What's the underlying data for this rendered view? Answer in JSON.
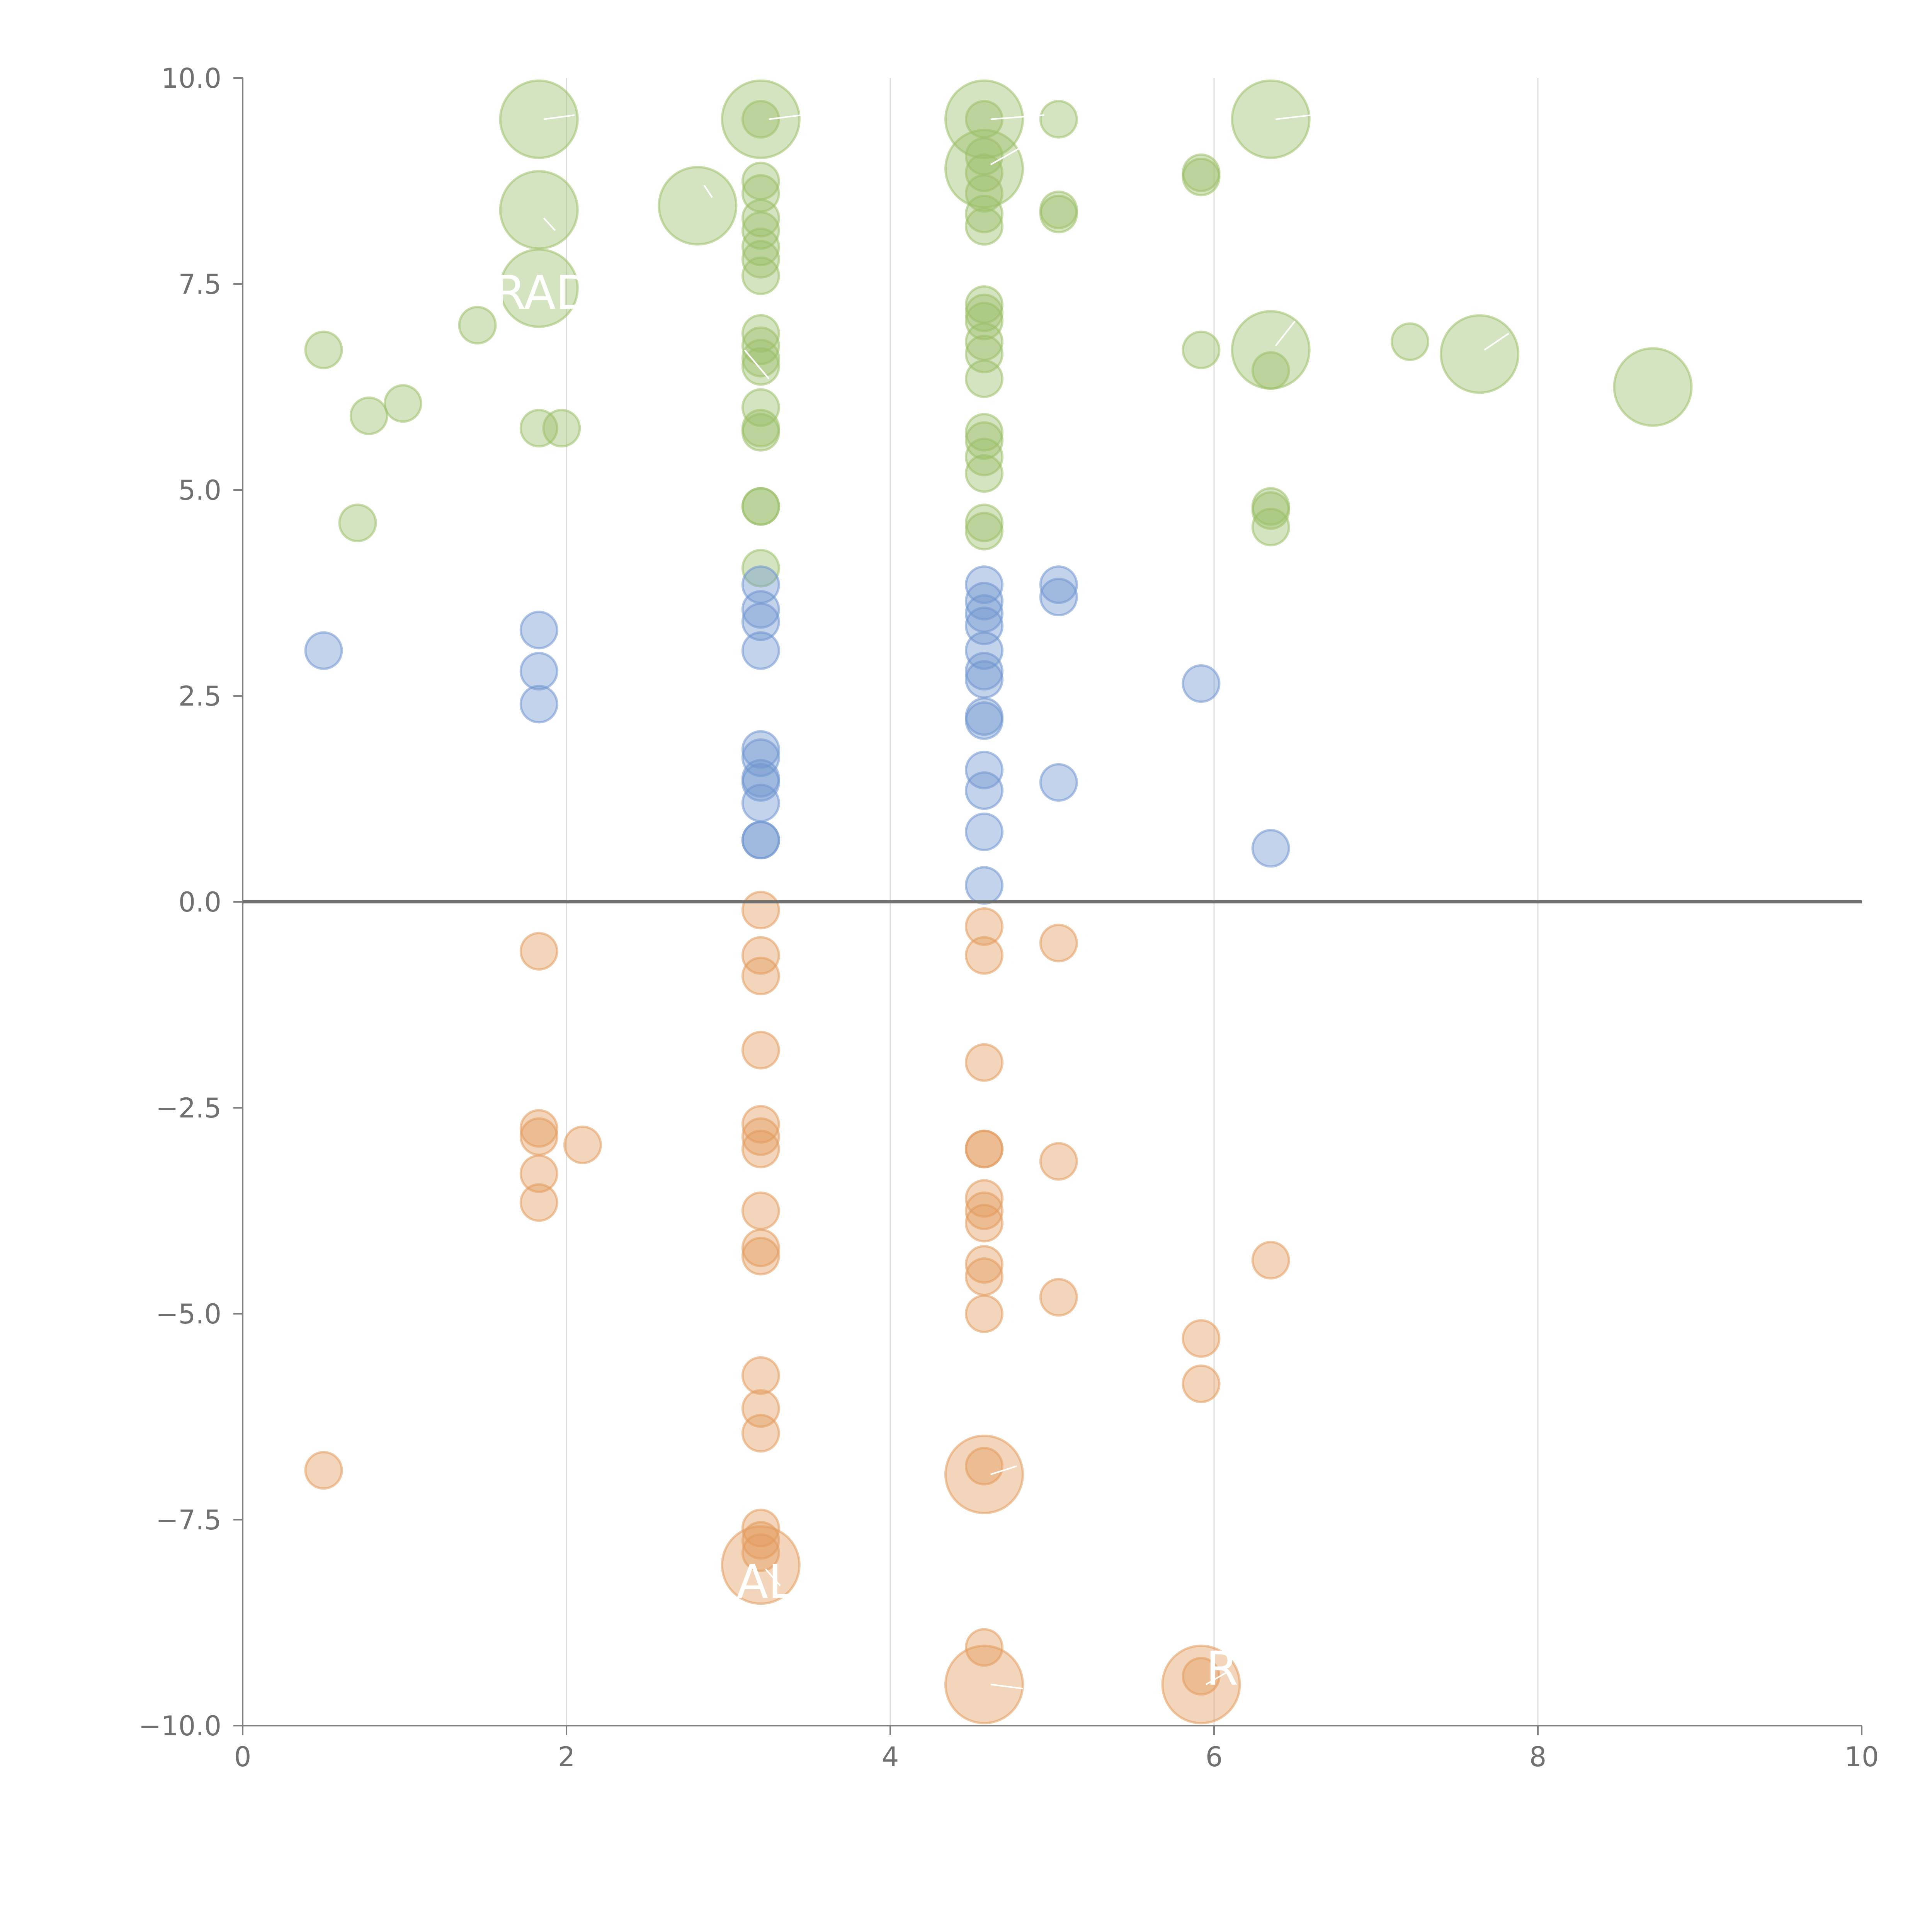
{
  "chart_data": {
    "type": "scatter",
    "title": "",
    "xlabel": "",
    "ylabel": "",
    "xlim": [
      0,
      10
    ],
    "ylim": [
      -10,
      10
    ],
    "x_ticks": [
      0,
      2,
      4,
      6,
      8,
      10
    ],
    "y_ticks": [
      -10,
      -7.5,
      -5,
      -2.5,
      0,
      2.5,
      5,
      7.5,
      10
    ],
    "x_tick_labels": [
      "0",
      "2",
      "4",
      "6",
      "8",
      "10"
    ],
    "y_tick_labels": [
      "−10.0",
      "−7.5",
      "−5.0",
      "−2.5",
      "0.0",
      "2.5",
      "5.0",
      "7.5",
      "10.0"
    ],
    "vertical_gridlines_at": [
      2,
      4,
      6,
      8
    ],
    "zero_line": true,
    "legend": "none",
    "colors": {
      "green": "#9bbf68",
      "blue": "#6f95cf",
      "orange": "#e29a5c"
    },
    "series": [
      {
        "name": "green",
        "points": [
          {
            "x": 1.83,
            "y": 9.5,
            "r": 3
          },
          {
            "x": 1.83,
            "y": 8.4,
            "r": 3
          },
          {
            "x": 1.83,
            "y": 7.45,
            "r": 3
          },
          {
            "x": 2.81,
            "y": 8.45,
            "r": 3
          },
          {
            "x": 3.2,
            "y": 9.5,
            "r": 3
          },
          {
            "x": 3.2,
            "y": 9.5,
            "r": 1
          },
          {
            "x": 3.2,
            "y": 8.75,
            "r": 1
          },
          {
            "x": 3.2,
            "y": 8.6,
            "r": 1
          },
          {
            "x": 3.2,
            "y": 8.3,
            "r": 1
          },
          {
            "x": 3.2,
            "y": 8.15,
            "r": 1
          },
          {
            "x": 3.2,
            "y": 7.95,
            "r": 1
          },
          {
            "x": 3.2,
            "y": 7.8,
            "r": 1
          },
          {
            "x": 3.2,
            "y": 7.6,
            "r": 1
          },
          {
            "x": 3.2,
            "y": 6.9,
            "r": 1
          },
          {
            "x": 3.2,
            "y": 6.75,
            "r": 1
          },
          {
            "x": 3.2,
            "y": 6.6,
            "r": 1
          },
          {
            "x": 3.2,
            "y": 6.5,
            "r": 1
          },
          {
            "x": 3.2,
            "y": 6.0,
            "r": 1
          },
          {
            "x": 3.2,
            "y": 5.75,
            "r": 1
          },
          {
            "x": 3.2,
            "y": 5.7,
            "r": 1
          },
          {
            "x": 3.2,
            "y": 4.8,
            "r": 1
          },
          {
            "x": 3.2,
            "y": 4.8,
            "r": 1
          },
          {
            "x": 3.2,
            "y": 4.05,
            "r": 1
          },
          {
            "x": 4.58,
            "y": 9.5,
            "r": 3
          },
          {
            "x": 4.58,
            "y": 8.9,
            "r": 3
          },
          {
            "x": 4.58,
            "y": 9.5,
            "r": 1
          },
          {
            "x": 4.58,
            "y": 9.05,
            "r": 1
          },
          {
            "x": 4.58,
            "y": 8.85,
            "r": 1
          },
          {
            "x": 4.58,
            "y": 8.6,
            "r": 1
          },
          {
            "x": 4.58,
            "y": 8.35,
            "r": 1
          },
          {
            "x": 4.58,
            "y": 8.2,
            "r": 1
          },
          {
            "x": 4.58,
            "y": 7.25,
            "r": 1
          },
          {
            "x": 4.58,
            "y": 7.15,
            "r": 1
          },
          {
            "x": 4.58,
            "y": 7.05,
            "r": 1
          },
          {
            "x": 4.58,
            "y": 6.8,
            "r": 1
          },
          {
            "x": 4.58,
            "y": 6.65,
            "r": 1
          },
          {
            "x": 4.58,
            "y": 6.35,
            "r": 1
          },
          {
            "x": 4.58,
            "y": 5.7,
            "r": 1
          },
          {
            "x": 4.58,
            "y": 5.6,
            "r": 1
          },
          {
            "x": 4.58,
            "y": 5.4,
            "r": 1
          },
          {
            "x": 4.58,
            "y": 5.2,
            "r": 1
          },
          {
            "x": 4.58,
            "y": 4.6,
            "r": 1
          },
          {
            "x": 4.58,
            "y": 4.5,
            "r": 1
          },
          {
            "x": 5.04,
            "y": 9.5,
            "r": 1
          },
          {
            "x": 5.04,
            "y": 8.4,
            "r": 1
          },
          {
            "x": 5.04,
            "y": 8.35,
            "r": 1
          },
          {
            "x": 5.92,
            "y": 8.85,
            "r": 1
          },
          {
            "x": 5.92,
            "y": 8.8,
            "r": 1
          },
          {
            "x": 5.92,
            "y": 6.7,
            "r": 1
          },
          {
            "x": 6.35,
            "y": 9.5,
            "r": 3
          },
          {
            "x": 6.35,
            "y": 6.7,
            "r": 3
          },
          {
            "x": 6.35,
            "y": 6.45,
            "r": 1
          },
          {
            "x": 6.35,
            "y": 4.8,
            "r": 1
          },
          {
            "x": 6.35,
            "y": 4.75,
            "r": 1
          },
          {
            "x": 6.35,
            "y": 4.55,
            "r": 1
          },
          {
            "x": 7.21,
            "y": 6.8,
            "r": 1
          },
          {
            "x": 7.64,
            "y": 6.65,
            "r": 3
          },
          {
            "x": 8.71,
            "y": 6.25,
            "r": 3
          },
          {
            "x": 0.5,
            "y": 6.7,
            "r": 1
          },
          {
            "x": 0.78,
            "y": 5.9,
            "r": 1
          },
          {
            "x": 0.99,
            "y": 6.05,
            "r": 1
          },
          {
            "x": 1.45,
            "y": 7.0,
            "r": 1
          },
          {
            "x": 1.83,
            "y": 5.75,
            "r": 1
          },
          {
            "x": 1.97,
            "y": 5.75,
            "r": 1
          },
          {
            "x": 0.71,
            "y": 4.6,
            "r": 1
          }
        ]
      },
      {
        "name": "blue",
        "points": [
          {
            "x": 0.5,
            "y": 3.05,
            "r": 1
          },
          {
            "x": 1.83,
            "y": 3.3,
            "r": 1
          },
          {
            "x": 1.83,
            "y": 2.8,
            "r": 1
          },
          {
            "x": 1.83,
            "y": 2.4,
            "r": 1
          },
          {
            "x": 3.2,
            "y": 3.85,
            "r": 1
          },
          {
            "x": 3.2,
            "y": 3.55,
            "r": 1
          },
          {
            "x": 3.2,
            "y": 3.4,
            "r": 1
          },
          {
            "x": 3.2,
            "y": 3.05,
            "r": 1
          },
          {
            "x": 3.2,
            "y": 1.85,
            "r": 1
          },
          {
            "x": 3.2,
            "y": 1.75,
            "r": 1
          },
          {
            "x": 3.2,
            "y": 1.5,
            "r": 1
          },
          {
            "x": 3.2,
            "y": 1.45,
            "r": 1
          },
          {
            "x": 3.2,
            "y": 1.2,
            "r": 1
          },
          {
            "x": 3.2,
            "y": 0.75,
            "r": 1
          },
          {
            "x": 3.2,
            "y": 0.75,
            "r": 1
          },
          {
            "x": 4.58,
            "y": 3.85,
            "r": 1
          },
          {
            "x": 4.58,
            "y": 3.65,
            "r": 1
          },
          {
            "x": 4.58,
            "y": 3.5,
            "r": 1
          },
          {
            "x": 4.58,
            "y": 3.35,
            "r": 1
          },
          {
            "x": 4.58,
            "y": 3.05,
            "r": 1
          },
          {
            "x": 4.58,
            "y": 2.8,
            "r": 1
          },
          {
            "x": 4.58,
            "y": 2.7,
            "r": 1
          },
          {
            "x": 4.58,
            "y": 2.25,
            "r": 1
          },
          {
            "x": 4.58,
            "y": 2.2,
            "r": 1
          },
          {
            "x": 4.58,
            "y": 1.6,
            "r": 1
          },
          {
            "x": 4.58,
            "y": 1.35,
            "r": 1
          },
          {
            "x": 4.58,
            "y": 0.85,
            "r": 1
          },
          {
            "x": 4.58,
            "y": 0.2,
            "r": 1
          },
          {
            "x": 5.04,
            "y": 3.85,
            "r": 1
          },
          {
            "x": 5.04,
            "y": 3.7,
            "r": 1
          },
          {
            "x": 5.04,
            "y": 1.45,
            "r": 1
          },
          {
            "x": 5.92,
            "y": 2.65,
            "r": 1
          },
          {
            "x": 6.35,
            "y": 0.65,
            "r": 1
          }
        ]
      },
      {
        "name": "orange",
        "points": [
          {
            "x": 1.83,
            "y": -0.6,
            "r": 1
          },
          {
            "x": 1.83,
            "y": -2.75,
            "r": 1
          },
          {
            "x": 1.83,
            "y": -2.85,
            "r": 1
          },
          {
            "x": 1.83,
            "y": -3.3,
            "r": 1
          },
          {
            "x": 1.83,
            "y": -3.65,
            "r": 1
          },
          {
            "x": 2.1,
            "y": -2.95,
            "r": 1
          },
          {
            "x": 0.5,
            "y": -6.9,
            "r": 1
          },
          {
            "x": 3.2,
            "y": -0.1,
            "r": 1
          },
          {
            "x": 3.2,
            "y": -0.65,
            "r": 1
          },
          {
            "x": 3.2,
            "y": -0.9,
            "r": 1
          },
          {
            "x": 3.2,
            "y": -1.8,
            "r": 1
          },
          {
            "x": 3.2,
            "y": -2.7,
            "r": 1
          },
          {
            "x": 3.2,
            "y": -2.85,
            "r": 1
          },
          {
            "x": 3.2,
            "y": -3.0,
            "r": 1
          },
          {
            "x": 3.2,
            "y": -3.75,
            "r": 1
          },
          {
            "x": 3.2,
            "y": -4.2,
            "r": 1
          },
          {
            "x": 3.2,
            "y": -4.3,
            "r": 1
          },
          {
            "x": 3.2,
            "y": -5.75,
            "r": 1
          },
          {
            "x": 3.2,
            "y": -6.15,
            "r": 1
          },
          {
            "x": 3.2,
            "y": -6.45,
            "r": 1
          },
          {
            "x": 3.2,
            "y": -7.6,
            "r": 1
          },
          {
            "x": 3.2,
            "y": -7.75,
            "r": 1
          },
          {
            "x": 3.2,
            "y": -7.9,
            "r": 1
          },
          {
            "x": 3.2,
            "y": -8.05,
            "r": 3
          },
          {
            "x": 4.58,
            "y": -0.3,
            "r": 1
          },
          {
            "x": 4.58,
            "y": -0.65,
            "r": 1
          },
          {
            "x": 4.58,
            "y": -1.95,
            "r": 1
          },
          {
            "x": 4.58,
            "y": -3.0,
            "r": 1
          },
          {
            "x": 4.58,
            "y": -3.0,
            "r": 1
          },
          {
            "x": 4.58,
            "y": -3.6,
            "r": 1
          },
          {
            "x": 4.58,
            "y": -3.75,
            "r": 1
          },
          {
            "x": 4.58,
            "y": -3.9,
            "r": 1
          },
          {
            "x": 4.58,
            "y": -4.4,
            "r": 1
          },
          {
            "x": 4.58,
            "y": -4.55,
            "r": 1
          },
          {
            "x": 4.58,
            "y": -5.0,
            "r": 1
          },
          {
            "x": 4.58,
            "y": -6.85,
            "r": 1
          },
          {
            "x": 4.58,
            "y": -6.95,
            "r": 3
          },
          {
            "x": 4.58,
            "y": -9.05,
            "r": 1
          },
          {
            "x": 4.58,
            "y": -9.5,
            "r": 3
          },
          {
            "x": 5.04,
            "y": -0.5,
            "r": 1
          },
          {
            "x": 5.04,
            "y": -3.15,
            "r": 1
          },
          {
            "x": 5.04,
            "y": -4.8,
            "r": 1
          },
          {
            "x": 5.92,
            "y": -5.3,
            "r": 1
          },
          {
            "x": 5.92,
            "y": -5.85,
            "r": 1
          },
          {
            "x": 5.92,
            "y": -9.4,
            "r": 1
          },
          {
            "x": 5.92,
            "y": -9.5,
            "r": 3
          },
          {
            "x": 6.35,
            "y": -4.35,
            "r": 1
          }
        ]
      }
    ],
    "callouts": [
      {
        "x1": 1.86,
        "y1": 9.5,
        "x2": 2.05,
        "y2": 9.55
      },
      {
        "x1": 1.86,
        "y1": 8.3,
        "x2": 1.93,
        "y2": 8.15
      },
      {
        "x1": 2.85,
        "y1": 8.7,
        "x2": 2.9,
        "y2": 8.55
      },
      {
        "x1": 3.25,
        "y1": 9.5,
        "x2": 3.45,
        "y2": 9.55
      },
      {
        "x1": 4.62,
        "y1": 9.5,
        "x2": 4.95,
        "y2": 9.55
      },
      {
        "x1": 4.62,
        "y1": 8.95,
        "x2": 4.8,
        "y2": 9.15
      },
      {
        "x1": 6.38,
        "y1": 9.5,
        "x2": 6.6,
        "y2": 9.55
      },
      {
        "x1": 6.38,
        "y1": 6.75,
        "x2": 6.5,
        "y2": 7.05
      },
      {
        "x1": 7.67,
        "y1": 6.7,
        "x2": 7.82,
        "y2": 6.9
      },
      {
        "x1": 3.25,
        "y1": 6.35,
        "x2": 3.1,
        "y2": 6.7
      },
      {
        "x1": 4.62,
        "y1": -6.95,
        "x2": 4.78,
        "y2": -6.85
      },
      {
        "x1": 3.23,
        "y1": -8.1,
        "x2": 3.32,
        "y2": -8.3
      },
      {
        "x1": 4.62,
        "y1": -9.5,
        "x2": 4.82,
        "y2": -9.55
      },
      {
        "x1": 5.95,
        "y1": -9.5,
        "x2": 6.08,
        "y2": -9.35
      }
    ],
    "annotations": [
      {
        "text": "RAD",
        "x": 1.55,
        "y": 7.2
      },
      {
        "text": "AL",
        "x": 3.05,
        "y": -8.45
      },
      {
        "text": "RP",
        "x": 5.95,
        "y": -9.5
      }
    ]
  }
}
